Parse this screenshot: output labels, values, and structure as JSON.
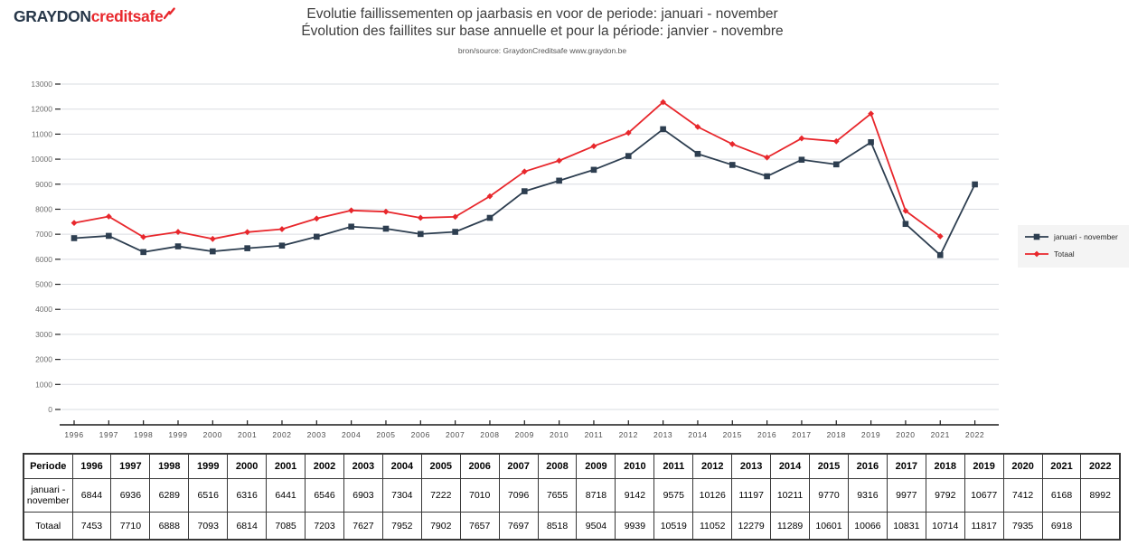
{
  "logo": {
    "graydon": "GRAYDON",
    "credit": "credit",
    "safe": "safe"
  },
  "header": {
    "title_line1": "Evolutie faillissementen op jaarbasis en voor de periode: januari - november",
    "title_line2": "Évolution des faillites sur base annuelle et pour la période: janvier - novembre",
    "source": "bron/source: GraydonCreditsafe www.graydon.be"
  },
  "colors": {
    "navy": "#2d3e50",
    "red": "#e8272c",
    "grid": "#d9dce1",
    "axis": "#1a1a1a",
    "ytick_label": "#6e6e6e",
    "xtick_label": "#4d4d4d",
    "legend_bg": "#f4f4f4"
  },
  "chart_data": {
    "type": "line",
    "x": [
      "1996",
      "1997",
      "1998",
      "1999",
      "2000",
      "2001",
      "2002",
      "2003",
      "2004",
      "2005",
      "2006",
      "2007",
      "2008",
      "2009",
      "2010",
      "2011",
      "2012",
      "2013",
      "2014",
      "2015",
      "2016",
      "2017",
      "2018",
      "2019",
      "2020",
      "2021",
      "2022"
    ],
    "series": [
      {
        "name": "januari - november",
        "color": "#2d3e50",
        "marker": "square",
        "values": [
          6844,
          6936,
          6289,
          6516,
          6316,
          6441,
          6546,
          6903,
          7304,
          7222,
          7010,
          7096,
          7655,
          8718,
          9142,
          9575,
          10126,
          11197,
          10211,
          9770,
          9316,
          9977,
          9792,
          10677,
          7412,
          6168,
          8992
        ]
      },
      {
        "name": "Totaal",
        "color": "#e8272c",
        "marker": "diamond",
        "values": [
          7453,
          7710,
          6888,
          7093,
          6814,
          7085,
          7203,
          7627,
          7952,
          7902,
          7657,
          7697,
          8518,
          9504,
          9939,
          10519,
          11052,
          12279,
          11289,
          10601,
          10066,
          10831,
          10714,
          11817,
          7935,
          6918,
          null
        ]
      }
    ],
    "title": "Evolutie faillissementen op jaarbasis en voor de periode: januari - november",
    "xlabel": "",
    "ylabel": "",
    "ylim": [
      0,
      13000
    ],
    "ytick_step": 1000,
    "grid": true,
    "legend_position": "right"
  },
  "table": {
    "header_label": "Periode",
    "years": [
      "1996",
      "1997",
      "1998",
      "1999",
      "2000",
      "2001",
      "2002",
      "2003",
      "2004",
      "2005",
      "2006",
      "2007",
      "2008",
      "2009",
      "2010",
      "2011",
      "2012",
      "2013",
      "2014",
      "2015",
      "2016",
      "2017",
      "2018",
      "2019",
      "2020",
      "2021",
      "2022"
    ],
    "rows": [
      {
        "label": "januari - november",
        "values": [
          6844,
          6936,
          6289,
          6516,
          6316,
          6441,
          6546,
          6903,
          7304,
          7222,
          7010,
          7096,
          7655,
          8718,
          9142,
          9575,
          10126,
          11197,
          10211,
          9770,
          9316,
          9977,
          9792,
          10677,
          7412,
          6168,
          8992
        ]
      },
      {
        "label": "Totaal",
        "values": [
          7453,
          7710,
          6888,
          7093,
          6814,
          7085,
          7203,
          7627,
          7952,
          7902,
          7657,
          7697,
          8518,
          9504,
          9939,
          10519,
          11052,
          12279,
          11289,
          10601,
          10066,
          10831,
          10714,
          11817,
          7935,
          6918,
          null
        ]
      }
    ]
  }
}
